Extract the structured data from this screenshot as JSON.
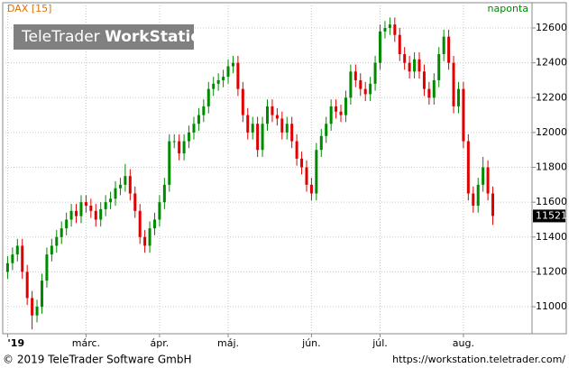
{
  "chart_data": {
    "type": "candlestick",
    "title": "DAX [15]",
    "subtitle": "naponta",
    "xlim": [
      -1,
      107
    ],
    "xticks": [
      {
        "value": 0,
        "label": "'19"
      },
      {
        "value": 16,
        "label": "márc."
      },
      {
        "value": 31,
        "label": "ápr."
      },
      {
        "value": 45,
        "label": "máj."
      },
      {
        "value": 62,
        "label": "jún."
      },
      {
        "value": 76,
        "label": "júl."
      },
      {
        "value": 93,
        "label": "aug."
      }
    ],
    "ylim": [
      10845,
      12745
    ],
    "yticks": [
      11000,
      11200,
      11400,
      11600,
      11800,
      12000,
      12200,
      12400,
      12600
    ],
    "grid": true,
    "series": [
      {
        "name": "DAX",
        "up_color": "#008a00",
        "down_color": "#e00000",
        "open": [
          11200,
          11250,
          11300,
          11350,
          11200,
          11050,
          10950,
          11000,
          11150,
          11300,
          11350,
          11400,
          11450,
          11500,
          11550,
          11520,
          11600,
          11580,
          11550,
          11500,
          11560,
          11600,
          11620,
          11680,
          11700,
          11750,
          11650,
          11550,
          11400,
          11350,
          11450,
          11500,
          11600,
          11700,
          11950,
          11950,
          11880,
          11950,
          12000,
          12050,
          12100,
          12150,
          12250,
          12280,
          12300,
          12320,
          12380,
          12400,
          12250,
          12100,
          12000,
          12050,
          11900,
          12050,
          12150,
          12100,
          12080,
          12000,
          12050,
          11950,
          11850,
          11800,
          11700,
          11650,
          11900,
          11980,
          12050,
          12150,
          12120,
          12100,
          12200,
          12350,
          12300,
          12250,
          12220,
          12280,
          12400,
          12580,
          12600,
          12620,
          12560,
          12450,
          12400,
          12350,
          12420,
          12350,
          12250,
          12200,
          12300,
          12450,
          12550,
          12400,
          12150,
          12250,
          11950,
          11650,
          11580,
          11700,
          11800,
          11650
        ],
        "high": [
          11290,
          11340,
          11390,
          11390,
          11240,
          11090,
          11040,
          11190,
          11340,
          11390,
          11440,
          11490,
          11540,
          11590,
          11590,
          11640,
          11640,
          11620,
          11590,
          11600,
          11640,
          11660,
          11720,
          11740,
          11820,
          11790,
          11690,
          11590,
          11440,
          11490,
          11540,
          11640,
          11740,
          11990,
          11990,
          11990,
          11990,
          12040,
          12090,
          12140,
          12190,
          12290,
          12320,
          12340,
          12360,
          12420,
          12440,
          12440,
          12290,
          12140,
          12090,
          12090,
          12090,
          12190,
          12190,
          12140,
          12120,
          12090,
          12090,
          11990,
          11890,
          11840,
          11740,
          11940,
          12020,
          12090,
          12190,
          12190,
          12160,
          12240,
          12390,
          12390,
          12340,
          12290,
          12320,
          12440,
          12620,
          12640,
          12660,
          12660,
          12600,
          12490,
          12440,
          12460,
          12460,
          12390,
          12290,
          12340,
          12490,
          12590,
          12590,
          12440,
          12290,
          12290,
          11990,
          11690,
          11740,
          11860,
          11840,
          11690
        ],
        "low": [
          11160,
          11210,
          11260,
          11160,
          11010,
          10870,
          10910,
          10960,
          11110,
          11260,
          11310,
          11360,
          11410,
          11460,
          11480,
          11480,
          11540,
          11510,
          11460,
          11460,
          11520,
          11560,
          11580,
          11640,
          11660,
          11610,
          11510,
          11360,
          11310,
          11310,
          11410,
          11460,
          11560,
          11660,
          11910,
          11840,
          11840,
          11910,
          11960,
          12010,
          12060,
          12110,
          12210,
          12240,
          12260,
          12280,
          12340,
          12210,
          12060,
          11960,
          11960,
          11860,
          11860,
          12010,
          12060,
          12040,
          11960,
          11960,
          11910,
          11810,
          11760,
          11660,
          11610,
          11610,
          11860,
          11940,
          12010,
          12080,
          12060,
          12060,
          12160,
          12260,
          12210,
          12180,
          12180,
          12240,
          12360,
          12540,
          12560,
          12520,
          12410,
          12360,
          12310,
          12310,
          12310,
          12210,
          12160,
          12160,
          12260,
          12410,
          12360,
          12110,
          12110,
          11910,
          11610,
          11540,
          11540,
          11660,
          11610,
          11470
        ],
        "close": [
          11250,
          11300,
          11350,
          11200,
          11050,
          10950,
          11000,
          11150,
          11300,
          11350,
          11400,
          11450,
          11500,
          11550,
          11520,
          11600,
          11580,
          11550,
          11500,
          11560,
          11600,
          11620,
          11680,
          11700,
          11750,
          11650,
          11550,
          11400,
          11350,
          11450,
          11500,
          11600,
          11700,
          11950,
          11950,
          11880,
          11950,
          12000,
          12050,
          12100,
          12150,
          12250,
          12280,
          12300,
          12320,
          12380,
          12400,
          12250,
          12100,
          12000,
          12050,
          11900,
          12050,
          12150,
          12100,
          12080,
          12000,
          12050,
          11950,
          11850,
          11800,
          11700,
          11650,
          11900,
          11980,
          12050,
          12150,
          12120,
          12100,
          12200,
          12350,
          12300,
          12250,
          12220,
          12280,
          12400,
          12580,
          12600,
          12620,
          12560,
          12450,
          12400,
          12350,
          12420,
          12350,
          12250,
          12200,
          12300,
          12450,
          12550,
          12400,
          12150,
          12250,
          11950,
          11650,
          11580,
          11700,
          11800,
          11650,
          11521
        ]
      }
    ]
  },
  "logo": {
    "brand": "TeleTrader",
    "product": "WorkStation"
  },
  "footer": {
    "copyright": "© 2019 TeleTrader Software GmbH",
    "url": "https://workstation.teletrader.com/"
  }
}
